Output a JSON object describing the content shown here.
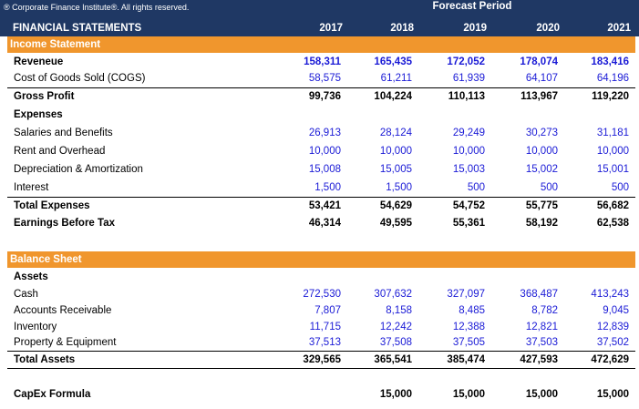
{
  "header": {
    "copyright": "® Corporate Finance Institute®. All rights reserved.",
    "forecast_label": "Forecast Period",
    "title": "FINANCIAL STATEMENTS",
    "years": [
      "2017",
      "2018",
      "2019",
      "2020",
      "2021"
    ]
  },
  "income": {
    "section_label": "Income Statement",
    "revenue": {
      "label": "Reveneue",
      "values": [
        "158,311",
        "165,435",
        "172,052",
        "178,074",
        "183,416"
      ]
    },
    "cogs": {
      "label": "Cost of Goods Sold (COGS)",
      "values": [
        "58,575",
        "61,211",
        "61,939",
        "64,107",
        "64,196"
      ]
    },
    "gross_profit": {
      "label": "Gross Profit",
      "values": [
        "99,736",
        "104,224",
        "110,113",
        "113,967",
        "119,220"
      ]
    },
    "expenses_label": "Expenses",
    "salaries": {
      "label": "Salaries and Benefits",
      "values": [
        "26,913",
        "28,124",
        "29,249",
        "30,273",
        "31,181"
      ]
    },
    "rent": {
      "label": "Rent and Overhead",
      "values": [
        "10,000",
        "10,000",
        "10,000",
        "10,000",
        "10,000"
      ]
    },
    "depreciation": {
      "label": "Depreciation & Amortization",
      "values": [
        "15,008",
        "15,005",
        "15,003",
        "15,002",
        "15,001"
      ]
    },
    "interest": {
      "label": "Interest",
      "values": [
        "1,500",
        "1,500",
        "500",
        "500",
        "500"
      ]
    },
    "total_expenses": {
      "label": "Total Expenses",
      "values": [
        "53,421",
        "54,629",
        "54,752",
        "55,775",
        "56,682"
      ]
    },
    "ebt": {
      "label": "Earnings Before Tax",
      "values": [
        "46,314",
        "49,595",
        "55,361",
        "58,192",
        "62,538"
      ]
    }
  },
  "balance": {
    "section_label": "Balance Sheet",
    "assets_label": "Assets",
    "cash": {
      "label": "Cash",
      "values": [
        "272,530",
        "307,632",
        "327,097",
        "368,487",
        "413,243"
      ]
    },
    "ar": {
      "label": "Accounts Receivable",
      "values": [
        "7,807",
        "8,158",
        "8,485",
        "8,782",
        "9,045"
      ]
    },
    "inventory": {
      "label": "Inventory",
      "values": [
        "11,715",
        "12,242",
        "12,388",
        "12,821",
        "12,839"
      ]
    },
    "ppe": {
      "label": "Property & Equipment",
      "values": [
        "37,513",
        "37,508",
        "37,505",
        "37,503",
        "37,502"
      ]
    },
    "total_assets": {
      "label": "Total Assets",
      "values": [
        "329,565",
        "365,541",
        "385,474",
        "427,593",
        "472,629"
      ]
    }
  },
  "capex": {
    "label": "CapEx Formula",
    "values": [
      "",
      "15,000",
      "15,000",
      "15,000",
      "15,000"
    ]
  },
  "colors": {
    "header_bg": "#1f3864",
    "section_bg": "#f0962d",
    "input_blue": "#1a1ad6"
  }
}
